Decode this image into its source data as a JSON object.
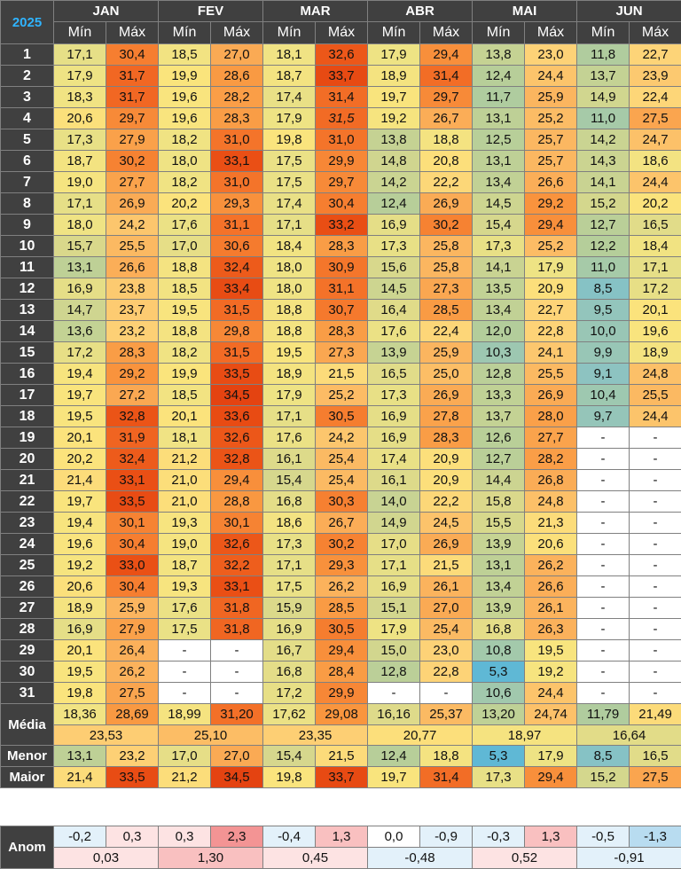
{
  "year": "2025",
  "months": [
    {
      "name": "JAN",
      "min": "Mín",
      "max": "Máx",
      "days": [
        [
          "17,1",
          "30,4"
        ],
        [
          "17,9",
          "31,7"
        ],
        [
          "18,3",
          "31,7"
        ],
        [
          "20,6",
          "29,7"
        ],
        [
          "17,3",
          "27,9"
        ],
        [
          "18,7",
          "30,2"
        ],
        [
          "19,0",
          "27,7"
        ],
        [
          "17,1",
          "26,9"
        ],
        [
          "18,0",
          "24,2"
        ],
        [
          "15,7",
          "25,5"
        ],
        [
          "13,1",
          "26,6"
        ],
        [
          "16,9",
          "23,8"
        ],
        [
          "14,7",
          "23,7"
        ],
        [
          "13,6",
          "23,2"
        ],
        [
          "17,2",
          "28,3"
        ],
        [
          "19,4",
          "29,2"
        ],
        [
          "19,7",
          "27,2"
        ],
        [
          "19,5",
          "32,8"
        ],
        [
          "20,1",
          "31,9"
        ],
        [
          "20,2",
          "32,4"
        ],
        [
          "21,4",
          "33,1"
        ],
        [
          "19,7",
          "33,5"
        ],
        [
          "19,4",
          "30,1"
        ],
        [
          "19,6",
          "30,4"
        ],
        [
          "19,2",
          "33,0"
        ],
        [
          "20,6",
          "30,4"
        ],
        [
          "18,9",
          "25,9"
        ],
        [
          "16,9",
          "27,9"
        ],
        [
          "20,1",
          "26,4"
        ],
        [
          "19,5",
          "26,2"
        ],
        [
          "19,8",
          "27,5"
        ]
      ],
      "mean_min": "18,36",
      "mean_max": "28,69",
      "mean": "23,53",
      "low_min": "13,1",
      "low_max": "23,2",
      "high_min": "21,4",
      "high_max": "33,5",
      "anom_min": "-0,2",
      "anom_max": "0,3",
      "anom": "0,03"
    },
    {
      "name": "FEV",
      "min": "Mín",
      "max": "Máx",
      "days": [
        [
          "18,5",
          "27,0"
        ],
        [
          "19,9",
          "28,6"
        ],
        [
          "19,6",
          "28,2"
        ],
        [
          "19,6",
          "28,3"
        ],
        [
          "18,2",
          "31,0"
        ],
        [
          "18,0",
          "33,1"
        ],
        [
          "18,2",
          "31,0"
        ],
        [
          "20,2",
          "29,3"
        ],
        [
          "17,6",
          "31,1"
        ],
        [
          "17,0",
          "30,6"
        ],
        [
          "18,8",
          "32,4"
        ],
        [
          "18,5",
          "33,4"
        ],
        [
          "19,5",
          "31,5"
        ],
        [
          "18,8",
          "29,8"
        ],
        [
          "18,2",
          "31,5"
        ],
        [
          "19,9",
          "33,5"
        ],
        [
          "18,5",
          "34,5"
        ],
        [
          "20,1",
          "33,6"
        ],
        [
          "18,1",
          "32,6"
        ],
        [
          "21,2",
          "32,8"
        ],
        [
          "21,0",
          "29,4"
        ],
        [
          "21,0",
          "28,8"
        ],
        [
          "19,3",
          "30,1"
        ],
        [
          "19,0",
          "32,6"
        ],
        [
          "18,7",
          "32,2"
        ],
        [
          "19,3",
          "33,1"
        ],
        [
          "17,6",
          "31,8"
        ],
        [
          "17,5",
          "31,8"
        ],
        [
          "-",
          "-"
        ],
        [
          "-",
          "-"
        ],
        [
          "-",
          "-"
        ]
      ],
      "mean_min": "18,99",
      "mean_max": "31,20",
      "mean": "25,10",
      "low_min": "17,0",
      "low_max": "27,0",
      "high_min": "21,2",
      "high_max": "34,5",
      "anom_min": "0,3",
      "anom_max": "2,3",
      "anom": "1,30"
    },
    {
      "name": "MAR",
      "min": "Mín",
      "max": "Máx",
      "days": [
        [
          "18,1",
          "32,6"
        ],
        [
          "18,7",
          "33,7"
        ],
        [
          "17,4",
          "31,4"
        ],
        [
          "17,9",
          "31,5"
        ],
        [
          "19,8",
          "31,0"
        ],
        [
          "17,5",
          "29,9"
        ],
        [
          "17,5",
          "29,7"
        ],
        [
          "17,4",
          "30,4"
        ],
        [
          "17,1",
          "33,2"
        ],
        [
          "18,4",
          "28,3"
        ],
        [
          "18,0",
          "30,9"
        ],
        [
          "18,0",
          "31,1"
        ],
        [
          "18,8",
          "30,7"
        ],
        [
          "18,8",
          "28,3"
        ],
        [
          "19,5",
          "27,3"
        ],
        [
          "18,9",
          "21,5"
        ],
        [
          "17,9",
          "25,2"
        ],
        [
          "17,1",
          "30,5"
        ],
        [
          "17,6",
          "24,2"
        ],
        [
          "16,1",
          "25,4"
        ],
        [
          "15,4",
          "25,4"
        ],
        [
          "16,8",
          "30,3"
        ],
        [
          "18,6",
          "26,7"
        ],
        [
          "17,3",
          "30,2"
        ],
        [
          "17,1",
          "29,3"
        ],
        [
          "17,5",
          "26,2"
        ],
        [
          "15,9",
          "28,5"
        ],
        [
          "16,9",
          "30,5"
        ],
        [
          "16,7",
          "29,4"
        ],
        [
          "16,8",
          "28,4"
        ],
        [
          "17,2",
          "29,9"
        ]
      ],
      "mean_min": "17,62",
      "mean_max": "29,08",
      "mean": "23,35",
      "low_min": "15,4",
      "low_max": "21,5",
      "high_min": "19,8",
      "high_max": "33,7",
      "anom_min": "-0,4",
      "anom_max": "1,3",
      "anom": "0,45"
    },
    {
      "name": "ABR",
      "min": "Mín",
      "max": "Máx",
      "days": [
        [
          "17,9",
          "29,4"
        ],
        [
          "18,9",
          "31,4"
        ],
        [
          "19,7",
          "29,7"
        ],
        [
          "19,2",
          "26,7"
        ],
        [
          "13,8",
          "18,8"
        ],
        [
          "14,8",
          "20,8"
        ],
        [
          "14,2",
          "22,2"
        ],
        [
          "12,4",
          "26,9"
        ],
        [
          "16,9",
          "30,2"
        ],
        [
          "17,3",
          "25,8"
        ],
        [
          "15,6",
          "25,8"
        ],
        [
          "14,5",
          "27,3"
        ],
        [
          "16,4",
          "28,5"
        ],
        [
          "17,6",
          "22,4"
        ],
        [
          "13,9",
          "25,9"
        ],
        [
          "16,5",
          "25,0"
        ],
        [
          "17,3",
          "26,9"
        ],
        [
          "16,9",
          "27,8"
        ],
        [
          "16,9",
          "28,3"
        ],
        [
          "17,4",
          "20,9"
        ],
        [
          "16,1",
          "20,9"
        ],
        [
          "14,0",
          "22,2"
        ],
        [
          "14,9",
          "24,5"
        ],
        [
          "17,0",
          "26,9"
        ],
        [
          "17,1",
          "21,5"
        ],
        [
          "16,9",
          "26,1"
        ],
        [
          "15,1",
          "27,0"
        ],
        [
          "17,9",
          "25,4"
        ],
        [
          "15,0",
          "23,0"
        ],
        [
          "12,8",
          "22,8"
        ],
        [
          "-",
          "-"
        ]
      ],
      "mean_min": "16,16",
      "mean_max": "25,37",
      "mean": "20,77",
      "low_min": "12,4",
      "low_max": "18,8",
      "high_min": "19,7",
      "high_max": "31,4",
      "anom_min": "0,0",
      "anom_max": "-0,9",
      "anom": "-0,48"
    },
    {
      "name": "MAI",
      "min": "Mín",
      "max": "Máx",
      "days": [
        [
          "13,8",
          "23,0"
        ],
        [
          "12,4",
          "24,4"
        ],
        [
          "11,7",
          "25,9"
        ],
        [
          "13,1",
          "25,2"
        ],
        [
          "12,5",
          "25,7"
        ],
        [
          "13,1",
          "25,7"
        ],
        [
          "13,4",
          "26,6"
        ],
        [
          "14,5",
          "29,2"
        ],
        [
          "15,4",
          "29,4"
        ],
        [
          "17,3",
          "25,2"
        ],
        [
          "14,1",
          "17,9"
        ],
        [
          "13,5",
          "20,9"
        ],
        [
          "13,4",
          "22,7"
        ],
        [
          "12,0",
          "22,8"
        ],
        [
          "10,3",
          "24,1"
        ],
        [
          "12,8",
          "25,5"
        ],
        [
          "13,3",
          "26,9"
        ],
        [
          "13,7",
          "28,0"
        ],
        [
          "12,6",
          "27,7"
        ],
        [
          "12,7",
          "28,2"
        ],
        [
          "14,4",
          "26,8"
        ],
        [
          "15,8",
          "24,8"
        ],
        [
          "15,5",
          "21,3"
        ],
        [
          "13,9",
          "20,6"
        ],
        [
          "13,1",
          "26,2"
        ],
        [
          "13,4",
          "26,6"
        ],
        [
          "13,9",
          "26,1"
        ],
        [
          "16,8",
          "26,3"
        ],
        [
          "10,8",
          "19,5"
        ],
        [
          "5,3",
          "19,2"
        ],
        [
          "10,6",
          "24,4"
        ]
      ],
      "mean_min": "13,20",
      "mean_max": "24,74",
      "mean": "18,97",
      "low_min": "5,3",
      "low_max": "17,9",
      "high_min": "17,3",
      "high_max": "29,4",
      "anom_min": "-0,3",
      "anom_max": "1,3",
      "anom": "0,52"
    },
    {
      "name": "JUN",
      "min": "Mín",
      "max": "Máx",
      "days": [
        [
          "11,8",
          "22,7"
        ],
        [
          "13,7",
          "23,9"
        ],
        [
          "14,9",
          "22,4"
        ],
        [
          "11,0",
          "27,5"
        ],
        [
          "14,2",
          "24,7"
        ],
        [
          "14,3",
          "18,6"
        ],
        [
          "14,1",
          "24,4"
        ],
        [
          "15,2",
          "20,2"
        ],
        [
          "12,7",
          "16,5"
        ],
        [
          "12,2",
          "18,4"
        ],
        [
          "11,0",
          "17,1"
        ],
        [
          "8,5",
          "17,2"
        ],
        [
          "9,5",
          "20,1"
        ],
        [
          "10,0",
          "19,6"
        ],
        [
          "9,9",
          "18,9"
        ],
        [
          "9,1",
          "24,8"
        ],
        [
          "10,4",
          "25,5"
        ],
        [
          "9,7",
          "24,4"
        ],
        [
          "-",
          "-"
        ],
        [
          "-",
          "-"
        ],
        [
          "-",
          "-"
        ],
        [
          "-",
          "-"
        ],
        [
          "-",
          "-"
        ],
        [
          "-",
          "-"
        ],
        [
          "-",
          "-"
        ],
        [
          "-",
          "-"
        ],
        [
          "-",
          "-"
        ],
        [
          "-",
          "-"
        ],
        [
          "-",
          "-"
        ],
        [
          "-",
          "-"
        ],
        [
          "-",
          "-"
        ]
      ],
      "mean_min": "11,79",
      "mean_max": "21,49",
      "mean": "16,64",
      "low_min": "8,5",
      "low_max": "16,5",
      "high_min": "15,2",
      "high_max": "27,5",
      "anom_min": "-0,5",
      "anom_max": "-1,3",
      "anom": "-0,91"
    }
  ],
  "labels": {
    "media": "Média",
    "menor": "Menor",
    "maior": "Maior",
    "anom": "Anom"
  },
  "colors": {
    "header_bg": "#404040",
    "header_text": "#ffffff",
    "year_text": "#2fb4ff",
    "border": "#808080",
    "scale": {
      "5": "#5bb7d7",
      "9": "#8cc3c2",
      "12": "#b3cd9b",
      "16": "#dcd98a",
      "18": "#efe384",
      "20": "#fbe47c",
      "23": "#fdd277",
      "26": "#fbb45e",
      "29": "#f9963f",
      "31": "#f4742a",
      "33": "#ea5015",
      "35": "#e23e0f"
    },
    "anom": {
      "neg_strong": "#b8dcf0",
      "neg_weak": "#e3f1fa",
      "zero": "#ffffff",
      "pos_weak": "#fde3e3",
      "pos_mid": "#f9c0c0",
      "pos_strong": "#f39494"
    }
  },
  "italic_cells": [
    {
      "month": 2,
      "day": 4,
      "col": "max"
    }
  ]
}
